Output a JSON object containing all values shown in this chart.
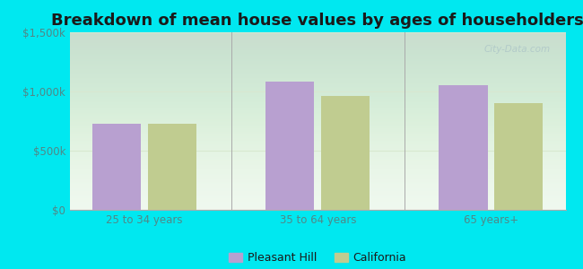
{
  "title": "Breakdown of mean house values by ages of householders",
  "categories": [
    "25 to 34 years",
    "35 to 64 years",
    "65 years+"
  ],
  "pleasant_hill_values": [
    730000,
    1080000,
    1055000
  ],
  "california_values": [
    730000,
    960000,
    900000
  ],
  "pleasant_hill_color": "#b8a0d0",
  "california_color": "#c0cc90",
  "ylim": [
    0,
    1500000
  ],
  "yticks": [
    0,
    500000,
    1000000,
    1500000
  ],
  "ytick_labels": [
    "$0",
    "$500k",
    "$1,000k",
    "$1,500k"
  ],
  "bar_width": 0.28,
  "outer_bg_color": "#00e8f0",
  "legend_labels": [
    "Pleasant Hill",
    "California"
  ],
  "title_fontsize": 13,
  "tick_label_color": "#508888",
  "grid_color": "#d8e8d0",
  "watermark_text": "City-Data.com",
  "watermark_color": "#b0c8c8"
}
